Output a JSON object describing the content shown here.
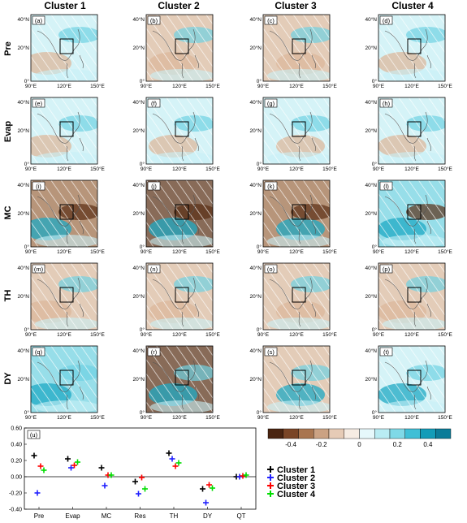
{
  "figure": {
    "column_titles": [
      "Cluster 1",
      "Cluster 2",
      "Cluster 3",
      "Cluster 4"
    ],
    "row_titles": [
      "Pre",
      "Evap",
      "MC",
      "TH",
      "DY"
    ],
    "panel_labels": [
      "(a)",
      "(b)",
      "(c)",
      "(d)",
      "(e)",
      "(f)",
      "(g)",
      "(h)",
      "(i)",
      "(j)",
      "(k)",
      "(l)",
      "(m)",
      "(n)",
      "(o)",
      "(p)",
      "(q)",
      "(r)",
      "(s)",
      "(t)"
    ],
    "map_lat_ticks": [
      "0°",
      "20°N",
      "40°N"
    ],
    "map_lon_ticks": [
      "90°E",
      "120°E",
      "150°E"
    ],
    "colorbar": {
      "tick_labels": [
        "-0.4",
        "-0.2",
        "0",
        "0.2",
        "0.4"
      ],
      "colors": [
        "#4a2410",
        "#7a4526",
        "#a9754f",
        "#cba283",
        "#e6cbb6",
        "#f6ece3",
        "#e6f8fb",
        "#b9ecf3",
        "#7fd9e7",
        "#3fbfd6",
        "#129cb8",
        "#0b7c99"
      ]
    },
    "colors": {
      "brown_dark": "#5a2e14",
      "brown_mid": "#9c6a44",
      "brown_light": "#dcb89c",
      "cyan_light": "#c8f0f6",
      "cyan_mid": "#6fd1e2",
      "cyan_dark": "#1fa9c4"
    }
  },
  "chart_data": {
    "type": "scatter",
    "title": "(u)",
    "categories": [
      "Pre",
      "Evap",
      "MC",
      "Res",
      "TH",
      "DY",
      "QT"
    ],
    "ylim": [
      -0.4,
      0.6
    ],
    "yticks": [
      "-0.40",
      "-0.20",
      "0.00",
      "0.20",
      "0.40",
      "0.60"
    ],
    "series": [
      {
        "name": "Cluster 1",
        "color": "#000000",
        "values": [
          0.26,
          0.22,
          0.11,
          -0.06,
          0.29,
          -0.15,
          0.0
        ]
      },
      {
        "name": "Cluster 2",
        "color": "#2020ff",
        "values": [
          -0.2,
          0.11,
          -0.11,
          -0.21,
          0.22,
          -0.32,
          0.0
        ]
      },
      {
        "name": "Cluster 3",
        "color": "#ff0000",
        "values": [
          0.13,
          0.14,
          0.02,
          -0.01,
          0.13,
          -0.1,
          0.01
        ]
      },
      {
        "name": "Cluster 4",
        "color": "#00dd00",
        "values": [
          0.08,
          0.18,
          0.02,
          -0.15,
          0.17,
          -0.14,
          0.02
        ]
      }
    ],
    "grid": false,
    "legend_position": "right-outside"
  }
}
